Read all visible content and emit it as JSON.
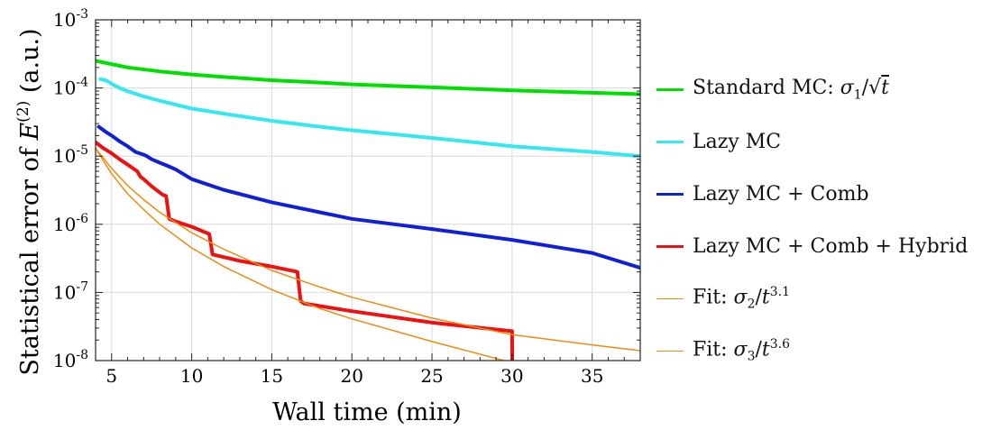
{
  "chart_data": {
    "type": "line",
    "title": "",
    "xlabel": "Wall time (min)",
    "ylabel": "Statistical error of E(2) (a.u.)",
    "xlim": [
      4,
      38
    ],
    "ylim": [
      1e-08,
      0.001
    ],
    "y_scale": "log",
    "grid": true,
    "legend_position": "right",
    "x_ticks": [
      5,
      10,
      15,
      20,
      25,
      30,
      35
    ],
    "y_ticks": [
      {
        "exp": -8,
        "label": "10-8"
      },
      {
        "exp": -7,
        "label": "10-7"
      },
      {
        "exp": -6,
        "label": "10-6"
      },
      {
        "exp": -5,
        "label": "10-5"
      },
      {
        "exp": -4,
        "label": "10-4"
      },
      {
        "exp": -3,
        "label": "10-3"
      }
    ],
    "series": [
      {
        "name": "Standard MC: σ1/√t",
        "color": "#00e000",
        "width": 4,
        "x": [
          4,
          6,
          8,
          10,
          12,
          15,
          18,
          20,
          25,
          30,
          35,
          38
        ],
        "y": [
          0.00025,
          0.0002,
          0.000175,
          0.000158,
          0.000145,
          0.00013,
          0.00012,
          0.000113,
          0.000102,
          9.2e-05,
          8.5e-05,
          8.1e-05
        ]
      },
      {
        "name": "Lazy MC",
        "color": "#33e8f0",
        "width": 4,
        "x": [
          4.3,
          4.7,
          5.0,
          5.5,
          6,
          7,
          8,
          10,
          12,
          15,
          18,
          20,
          25,
          30,
          35,
          38
        ],
        "y": [
          0.000135,
          0.000128,
          0.000115,
          0.0001,
          9e-05,
          7.5e-05,
          6.5e-05,
          5e-05,
          4.2e-05,
          3.3e-05,
          2.7e-05,
          2.4e-05,
          1.85e-05,
          1.4e-05,
          1.15e-05,
          1e-05
        ]
      },
      {
        "name": "Lazy MC + Comb",
        "color": "#1020d8",
        "width": 4,
        "x": [
          4.2,
          4.6,
          5.0,
          5.5,
          6.0,
          6.5,
          7.0,
          7.2,
          7.5,
          8.0,
          8.5,
          9.0,
          10,
          12,
          15,
          18,
          20,
          25,
          30,
          35,
          38
        ],
        "y": [
          2.7e-05,
          2.3e-05,
          2e-05,
          1.65e-05,
          1.4e-05,
          1.15e-05,
          1.05e-05,
          1e-05,
          9e-06,
          8e-06,
          7.2e-06,
          6.4e-06,
          4.6e-06,
          3.2e-06,
          2.1e-06,
          1.5e-06,
          1.2e-06,
          8.5e-07,
          5.9e-07,
          3.8e-07,
          2.3e-07
        ]
      },
      {
        "name": "Lazy MC + Comb + Hybrid",
        "color": "#ee1111",
        "width": 4,
        "x": [
          4,
          4.5,
          5.0,
          5.5,
          6.0,
          6.6,
          6.8,
          7.0,
          7.5,
          8.2,
          8.4,
          8.6,
          9,
          10,
          11.1,
          11.3,
          13,
          15,
          16.6,
          16.8,
          17,
          20,
          25,
          30,
          30.01
        ],
        "y": [
          1.6e-05,
          1.3e-05,
          1.1e-05,
          9e-06,
          7.5e-06,
          6e-06,
          5e-06,
          4.6e-06,
          3.6e-06,
          2.7e-06,
          2.6e-06,
          1.2e-06,
          1.1e-06,
          9.2e-07,
          7.2e-07,
          3.6e-07,
          2.9e-07,
          2.4e-07,
          2e-07,
          7.5e-08,
          6.9e-08,
          5.3e-08,
          3.6e-08,
          2.7e-08,
          1e-08
        ]
      },
      {
        "name": "Fit: σ2/t3.1",
        "color": "#f08a10",
        "width": 1.5,
        "x": [
          4,
          5,
          6,
          7,
          8,
          10,
          12,
          15,
          18,
          20,
          25,
          30,
          35,
          38
        ],
        "y": [
          1.3e-05,
          6.6e-06,
          3.7e-06,
          2.3e-06,
          1.5e-06,
          7.5e-07,
          4.3e-07,
          2.1e-07,
          1.2e-07,
          8.5e-08,
          4.2e-08,
          2.4e-08,
          1.7e-08,
          1.4e-08
        ]
      },
      {
        "name": "Fit: σ3/t3.6",
        "color": "#f08a10",
        "width": 1.5,
        "x": [
          4,
          5,
          6,
          7,
          8,
          10,
          12,
          15,
          18,
          20,
          25,
          29.5
        ],
        "y": [
          1.3e-05,
          5.5e-06,
          2.8e-06,
          1.65e-06,
          1e-06,
          4.5e-07,
          2.4e-07,
          1.1e-07,
          5.8e-08,
          4.1e-08,
          1.9e-08,
          1e-08
        ]
      }
    ]
  },
  "legend": {
    "items": [
      {
        "pre": "Standard MC: ",
        "sym": "σ",
        "sub": "1",
        "mid": "/√",
        "tail": "t",
        "sup": ""
      },
      {
        "pre": "Lazy MC",
        "sym": "",
        "sub": "",
        "mid": "",
        "tail": "",
        "sup": ""
      },
      {
        "pre": "Lazy MC + Comb",
        "sym": "",
        "sub": "",
        "mid": "",
        "tail": "",
        "sup": ""
      },
      {
        "pre": "Lazy MC + Comb + Hybrid",
        "sym": "",
        "sub": "",
        "mid": "",
        "tail": "",
        "sup": ""
      },
      {
        "pre": "Fit: ",
        "sym": "σ",
        "sub": "2",
        "mid": "/",
        "tail": "t",
        "sup": "3.1"
      },
      {
        "pre": "Fit: ",
        "sym": "σ",
        "sub": "3",
        "mid": "/",
        "tail": "t",
        "sup": "3.6"
      }
    ]
  }
}
